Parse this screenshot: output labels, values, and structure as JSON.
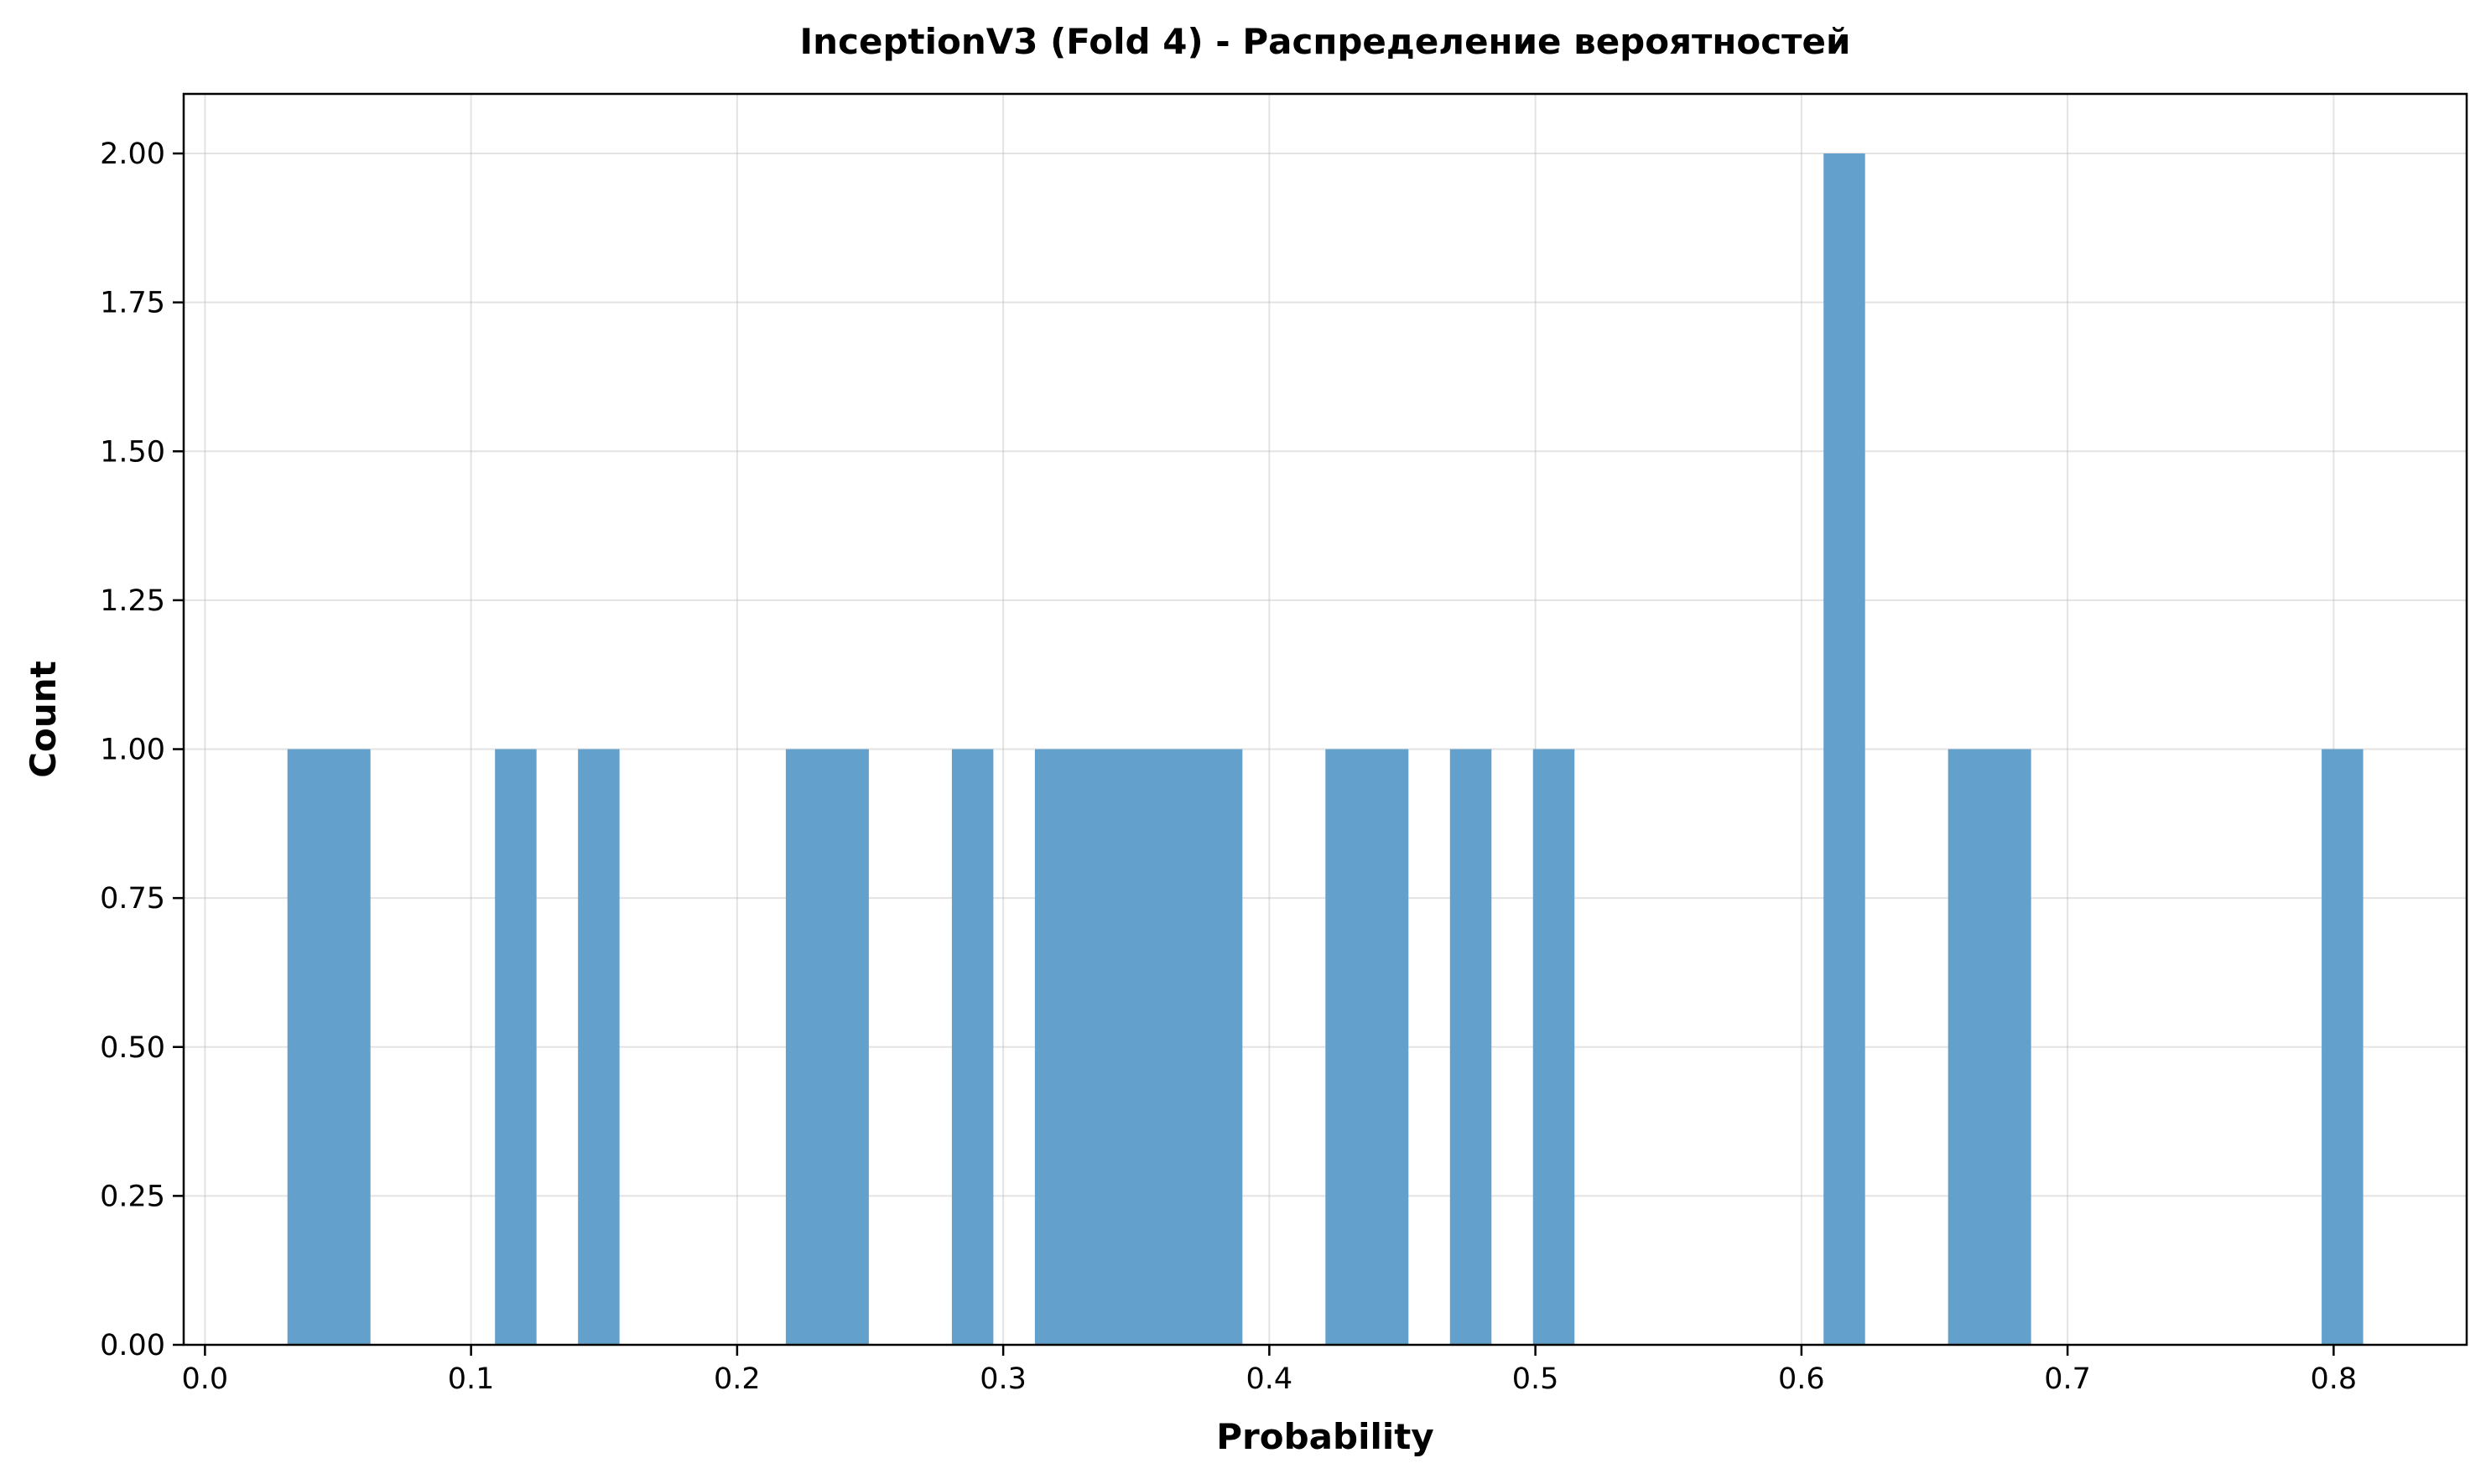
{
  "chart_data": {
    "type": "bar",
    "title": "InceptionV3 (Fold 4) - Распределение вероятностей",
    "xlabel": "Probability",
    "ylabel": "Count",
    "xlim": [
      -0.008,
      0.85
    ],
    "ylim": [
      0,
      2.1
    ],
    "grid": true,
    "bar_color": "#63a0cb",
    "bin_width": 0.0156,
    "x_ticks": [
      {
        "value": 0.0,
        "label": "0.0"
      },
      {
        "value": 0.1,
        "label": "0.1"
      },
      {
        "value": 0.2,
        "label": "0.2"
      },
      {
        "value": 0.3,
        "label": "0.3"
      },
      {
        "value": 0.4,
        "label": "0.4"
      },
      {
        "value": 0.5,
        "label": "0.5"
      },
      {
        "value": 0.6,
        "label": "0.6"
      },
      {
        "value": 0.7,
        "label": "0.7"
      },
      {
        "value": 0.8,
        "label": "0.8"
      }
    ],
    "y_ticks": [
      {
        "value": 0.0,
        "label": "0.00"
      },
      {
        "value": 0.25,
        "label": "0.25"
      },
      {
        "value": 0.5,
        "label": "0.50"
      },
      {
        "value": 0.75,
        "label": "0.75"
      },
      {
        "value": 1.0,
        "label": "1.00"
      },
      {
        "value": 1.25,
        "label": "1.25"
      },
      {
        "value": 1.5,
        "label": "1.50"
      },
      {
        "value": 1.75,
        "label": "1.75"
      },
      {
        "value": 2.0,
        "label": "2.00"
      }
    ],
    "bins": [
      {
        "x_start": 0.031,
        "x_end": 0.0622,
        "count": 1
      },
      {
        "x_start": 0.109,
        "x_end": 0.1246,
        "count": 1
      },
      {
        "x_start": 0.1402,
        "x_end": 0.1558,
        "count": 1
      },
      {
        "x_start": 0.2183,
        "x_end": 0.2495,
        "count": 1
      },
      {
        "x_start": 0.2807,
        "x_end": 0.2963,
        "count": 1
      },
      {
        "x_start": 0.3119,
        "x_end": 0.3899,
        "count": 1
      },
      {
        "x_start": 0.4211,
        "x_end": 0.4523,
        "count": 1
      },
      {
        "x_start": 0.4679,
        "x_end": 0.4835,
        "count": 1
      },
      {
        "x_start": 0.4991,
        "x_end": 0.5147,
        "count": 1
      },
      {
        "x_start": 0.6083,
        "x_end": 0.6239,
        "count": 2
      },
      {
        "x_start": 0.6551,
        "x_end": 0.6863,
        "count": 1
      },
      {
        "x_start": 0.7955,
        "x_end": 0.8111,
        "count": 1
      }
    ]
  }
}
